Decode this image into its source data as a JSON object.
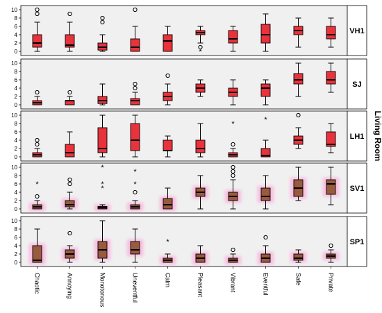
{
  "chart_data": [
    {
      "type": "box",
      "panel_label": "VH1",
      "ylim": [
        0,
        10
      ],
      "yticks": [
        0,
        2,
        4,
        6,
        8,
        10
      ],
      "fill_color": "#e8323c",
      "categories": [
        "Chaotic",
        "Annoying",
        "Monotonous",
        "Uneventful",
        "Calm",
        "Pleasant",
        "Vibrant",
        "Eventful",
        "Safe",
        "Private"
      ],
      "boxes": [
        {
          "min": 0,
          "q1": 1,
          "median": 2,
          "q3": 4,
          "max": 7,
          "outliers": [
            9,
            10
          ],
          "extremes": []
        },
        {
          "min": 0,
          "q1": 1,
          "median": 1.5,
          "q3": 4,
          "max": 7,
          "outliers": [
            9
          ],
          "extremes": []
        },
        {
          "min": 0,
          "q1": 0.3,
          "median": 1,
          "q3": 2,
          "max": 4,
          "outliers": [
            7,
            8
          ],
          "extremes": []
        },
        {
          "min": 0,
          "q1": 0,
          "median": 1,
          "q3": 3,
          "max": 6,
          "outliers": [
            10
          ],
          "extremes": []
        },
        {
          "min": 0,
          "q1": 0,
          "median": 2.5,
          "q3": 4,
          "max": 6,
          "outliers": [],
          "extremes": []
        },
        {
          "min": 2,
          "q1": 4,
          "median": 4.5,
          "q3": 5,
          "max": 6,
          "outliers": [
            1
          ],
          "extremes": [
            0
          ]
        },
        {
          "min": 0,
          "q1": 2,
          "median": 3,
          "q3": 5,
          "max": 6,
          "outliers": [],
          "extremes": []
        },
        {
          "min": 0,
          "q1": 2,
          "median": 4,
          "q3": 6.5,
          "max": 9,
          "outliers": [],
          "extremes": []
        },
        {
          "min": 1,
          "q1": 4,
          "median": 5,
          "q3": 6,
          "max": 8,
          "outliers": [],
          "extremes": []
        },
        {
          "min": 1,
          "q1": 3,
          "median": 4,
          "q3": 6,
          "max": 8,
          "outliers": [],
          "extremes": []
        }
      ]
    },
    {
      "type": "box",
      "panel_label": "SJ",
      "ylim": [
        0,
        10
      ],
      "yticks": [
        0,
        2,
        4,
        6,
        8,
        10
      ],
      "fill_color": "#e8323c",
      "categories": [
        "Chaotic",
        "Annoying",
        "Monotonous",
        "Uneventful",
        "Calm",
        "Pleasant",
        "Vibrant",
        "Eventful",
        "Safe",
        "Private"
      ],
      "boxes": [
        {
          "min": 0,
          "q1": 0,
          "median": 0.5,
          "q3": 1,
          "max": 2,
          "outliers": [
            3
          ],
          "extremes": []
        },
        {
          "min": 0,
          "q1": 0,
          "median": 1,
          "q3": 1,
          "max": 2,
          "outliers": [
            3
          ],
          "extremes": []
        },
        {
          "min": 0,
          "q1": 0.3,
          "median": 1,
          "q3": 2,
          "max": 5,
          "outliers": [],
          "extremes": []
        },
        {
          "min": 0,
          "q1": 0,
          "median": 1,
          "q3": 1.5,
          "max": 3,
          "outliers": [
            4,
            5
          ],
          "extremes": []
        },
        {
          "min": 0,
          "q1": 1,
          "median": 2,
          "q3": 3,
          "max": 5,
          "outliers": [
            7
          ],
          "extremes": []
        },
        {
          "min": 2,
          "q1": 3,
          "median": 4,
          "q3": 5,
          "max": 6,
          "outliers": [],
          "extremes": []
        },
        {
          "min": 0,
          "q1": 2,
          "median": 3,
          "q3": 4,
          "max": 6,
          "outliers": [],
          "extremes": []
        },
        {
          "min": 0,
          "q1": 2,
          "median": 4,
          "q3": 5,
          "max": 6,
          "outliers": [],
          "extremes": []
        },
        {
          "min": 2,
          "q1": 5,
          "median": 6,
          "q3": 7.5,
          "max": 10,
          "outliers": [],
          "extremes": []
        },
        {
          "min": 3,
          "q1": 5,
          "median": 6,
          "q3": 8,
          "max": 10,
          "outliers": [],
          "extremes": []
        }
      ]
    },
    {
      "type": "box",
      "panel_label": "LH1",
      "ylim": [
        0,
        10
      ],
      "yticks": [
        0,
        2,
        4,
        6,
        8,
        10
      ],
      "fill_color": "#e8323c",
      "categories": [
        "Chaotic",
        "Annoying",
        "Monotonous",
        "Uneventful",
        "Calm",
        "Pleasant",
        "Vibrant",
        "Eventful",
        "Safe",
        "Private"
      ],
      "boxes": [
        {
          "min": 0,
          "q1": 0,
          "median": 0.5,
          "q3": 1,
          "max": 2,
          "outliers": [
            3,
            4
          ],
          "extremes": []
        },
        {
          "min": 0,
          "q1": 0,
          "median": 1,
          "q3": 3,
          "max": 6,
          "outliers": [],
          "extremes": []
        },
        {
          "min": 0,
          "q1": 1,
          "median": 2,
          "q3": 7,
          "max": 10,
          "outliers": [],
          "extremes": []
        },
        {
          "min": 0,
          "q1": 1.5,
          "median": 4,
          "q3": 8,
          "max": 10,
          "outliers": [],
          "extremes": []
        },
        {
          "min": 0,
          "q1": 1.5,
          "median": 1.5,
          "q3": 4,
          "max": 5,
          "outliers": [],
          "extremes": []
        },
        {
          "min": 0,
          "q1": 1,
          "median": 2,
          "q3": 4,
          "max": 8,
          "outliers": [],
          "extremes": []
        },
        {
          "min": 0,
          "q1": 0,
          "median": 0.5,
          "q3": 1,
          "max": 2,
          "outliers": [
            3
          ],
          "extremes": [
            8
          ]
        },
        {
          "min": 0,
          "q1": 0,
          "median": 0.3,
          "q3": 2,
          "max": 4,
          "outliers": [],
          "extremes": [
            9
          ]
        },
        {
          "min": 2,
          "q1": 3,
          "median": 4,
          "q3": 5,
          "max": 7,
          "outliers": [
            10
          ],
          "extremes": []
        },
        {
          "min": 1,
          "q1": 2.5,
          "median": 3,
          "q3": 6,
          "max": 8,
          "outliers": [],
          "extremes": []
        }
      ]
    },
    {
      "type": "box",
      "panel_label": "SV1",
      "ylim": [
        0,
        10
      ],
      "yticks": [
        0,
        2,
        4,
        6,
        8,
        10
      ],
      "fill_color": "#9a5a3e",
      "categories": [
        "Chaotic",
        "Annoying",
        "Monotonous",
        "Uneventful",
        "Calm",
        "Pleasant",
        "Vibrant",
        "Eventful",
        "Safe",
        "Private"
      ],
      "boxes": [
        {
          "min": 0,
          "q1": 0,
          "median": 0.5,
          "q3": 1,
          "max": 2,
          "outliers": [
            3
          ],
          "extremes": [
            6
          ]
        },
        {
          "min": 0,
          "q1": 0.5,
          "median": 1,
          "q3": 2,
          "max": 4,
          "outliers": [
            6,
            7
          ],
          "extremes": []
        },
        {
          "min": 0,
          "q1": 0,
          "median": 0.3,
          "q3": 0.6,
          "max": 1,
          "outliers": [],
          "extremes": [
            5,
            6,
            10
          ]
        },
        {
          "min": 0,
          "q1": 0,
          "median": 0.5,
          "q3": 1,
          "max": 2,
          "outliers": [
            4
          ],
          "extremes": [
            6,
            9
          ]
        },
        {
          "min": 0,
          "q1": 0,
          "median": 1,
          "q3": 2.5,
          "max": 5,
          "outliers": [],
          "extremes": []
        },
        {
          "min": 0,
          "q1": 3,
          "median": 4,
          "q3": 5,
          "max": 8,
          "outliers": [],
          "extremes": []
        },
        {
          "min": 0,
          "q1": 2,
          "median": 3,
          "q3": 4,
          "max": 7,
          "outliers": [
            8,
            9,
            10
          ],
          "extremes": []
        },
        {
          "min": 0,
          "q1": 2,
          "median": 3,
          "q3": 5,
          "max": 8,
          "outliers": [],
          "extremes": []
        },
        {
          "min": 2,
          "q1": 3,
          "median": 5,
          "q3": 7,
          "max": 10,
          "outliers": [],
          "extremes": []
        },
        {
          "min": 1,
          "q1": 3.5,
          "median": 6,
          "q3": 7,
          "max": 10,
          "outliers": [],
          "extremes": []
        }
      ]
    },
    {
      "type": "box",
      "panel_label": "SP1",
      "ylim": [
        0,
        10
      ],
      "yticks": [
        0,
        2,
        4,
        6,
        8,
        10
      ],
      "fill_color": "#9a5a3e",
      "categories": [
        "Chaotic",
        "Annoying",
        "Monotonous",
        "Uneventful",
        "Calm",
        "Pleasant",
        "Vibrant",
        "Eventful",
        "Safe",
        "Private"
      ],
      "boxes": [
        {
          "min": 0,
          "q1": 0,
          "median": 0.5,
          "q3": 4,
          "max": 8,
          "outliers": [],
          "extremes": []
        },
        {
          "min": 0,
          "q1": 1,
          "median": 2,
          "q3": 3,
          "max": 4,
          "outliers": [
            7
          ],
          "extremes": []
        },
        {
          "min": 0,
          "q1": 1,
          "median": 3,
          "q3": 5,
          "max": 10,
          "outliers": [],
          "extremes": []
        },
        {
          "min": 0,
          "q1": 2,
          "median": 3,
          "q3": 5,
          "max": 8,
          "outliers": [],
          "extremes": []
        },
        {
          "min": 0,
          "q1": 0,
          "median": 0.5,
          "q3": 1,
          "max": 2,
          "outliers": [],
          "extremes": [
            5
          ]
        },
        {
          "min": 0,
          "q1": 0,
          "median": 1,
          "q3": 2,
          "max": 4,
          "outliers": [],
          "extremes": []
        },
        {
          "min": 0,
          "q1": 0,
          "median": 0.5,
          "q3": 1,
          "max": 2,
          "outliers": [
            3
          ],
          "extremes": []
        },
        {
          "min": 0,
          "q1": 0,
          "median": 1,
          "q3": 2,
          "max": 4,
          "outliers": [
            6
          ],
          "extremes": []
        },
        {
          "min": 0,
          "q1": 0.5,
          "median": 1,
          "q3": 2,
          "max": 3,
          "outliers": [],
          "extremes": []
        },
        {
          "min": 0,
          "q1": 1,
          "median": 1.5,
          "q3": 2,
          "max": 3,
          "outliers": [
            4
          ],
          "extremes": []
        }
      ]
    }
  ],
  "side_title": "Living Room",
  "colors": {
    "panel_bg": "#f0f0f0",
    "axis": "#000000",
    "highlight_glow": "#ff8fd0"
  }
}
